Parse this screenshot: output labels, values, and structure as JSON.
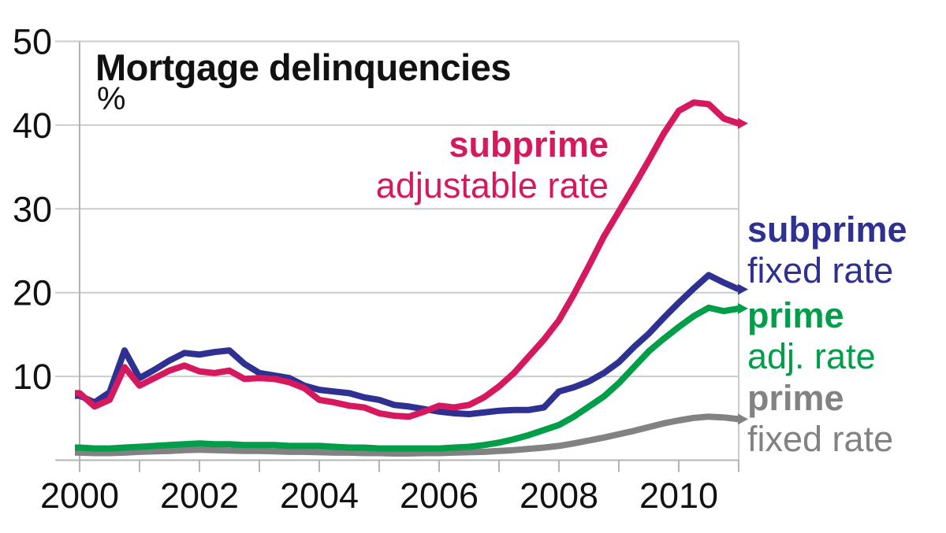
{
  "title": "Mortgage delinquencies",
  "unit_label": "%",
  "chart_data": {
    "type": "line",
    "title": "Mortgage delinquencies",
    "ylabel": "%",
    "xlabel": "",
    "grid": true,
    "xlim": [
      2000,
      2011
    ],
    "ylim": [
      0,
      50
    ],
    "x_start": 2000,
    "x_step_years": 0.25,
    "x_frequency": "quarterly",
    "xtick_years": [
      2000,
      2001,
      2002,
      2003,
      2004,
      2005,
      2006,
      2007,
      2008,
      2009,
      2010,
      2011
    ],
    "xtick_labels": [
      {
        "year": 2000,
        "label": "2000"
      },
      {
        "year": 2002,
        "label": "2002"
      },
      {
        "year": 2004,
        "label": "2004"
      },
      {
        "year": 2006,
        "label": "2006"
      },
      {
        "year": 2008,
        "label": "2008"
      },
      {
        "year": 2010,
        "label": "2010"
      }
    ],
    "ytick_labels": [
      {
        "value": 10,
        "label": "10"
      },
      {
        "value": 20,
        "label": "20"
      },
      {
        "value": 30,
        "label": "30"
      },
      {
        "value": 40,
        "label": "40"
      },
      {
        "value": 50,
        "label": "50"
      }
    ],
    "legend_position": "annotations-on-chart",
    "colors": {
      "grid": "#cccccc",
      "axis": "#b3b3b3",
      "text": "#111111"
    },
    "series": [
      {
        "id": "subprime-arm",
        "name": "subprime adjustable rate",
        "label_line1": "subprime",
        "label_line2": "adjustable rate",
        "color": "#D6195F",
        "values": [
          8.0,
          6.4,
          7.2,
          11.1,
          8.9,
          9.8,
          10.7,
          11.3,
          10.6,
          10.4,
          10.7,
          9.7,
          9.8,
          9.7,
          9.3,
          8.6,
          7.2,
          6.9,
          6.5,
          6.3,
          5.6,
          5.3,
          5.2,
          5.8,
          6.5,
          6.3,
          6.6,
          7.5,
          8.8,
          10.4,
          12.4,
          14.4,
          16.7,
          19.8,
          23.2,
          26.7,
          29.7,
          32.7,
          35.8,
          39.0,
          41.7,
          42.7,
          42.5,
          40.8,
          40.2
        ]
      },
      {
        "id": "subprime-frm",
        "name": "subprime fixed rate",
        "label_line1": "subprime",
        "label_line2": "fixed rate",
        "color": "#2E3192",
        "values": [
          7.7,
          6.9,
          8.1,
          13.1,
          9.8,
          10.8,
          11.9,
          12.8,
          12.6,
          12.9,
          13.1,
          11.5,
          10.4,
          10.1,
          9.8,
          8.9,
          8.4,
          8.2,
          8.0,
          7.5,
          7.2,
          6.6,
          6.4,
          6.1,
          5.8,
          5.6,
          5.5,
          5.7,
          5.9,
          6.0,
          6.0,
          6.3,
          8.2,
          8.7,
          9.4,
          10.4,
          11.7,
          13.5,
          15.1,
          17.0,
          18.8,
          20.5,
          22.1,
          21.2,
          20.4
        ]
      },
      {
        "id": "prime-arm",
        "name": "prime adjustable rate",
        "label_line1": "prime",
        "label_line2": "adj. rate",
        "color": "#009E49",
        "values": [
          1.5,
          1.4,
          1.4,
          1.5,
          1.6,
          1.7,
          1.8,
          1.9,
          2.0,
          1.9,
          1.9,
          1.8,
          1.8,
          1.8,
          1.7,
          1.7,
          1.7,
          1.6,
          1.5,
          1.5,
          1.4,
          1.4,
          1.4,
          1.4,
          1.4,
          1.5,
          1.6,
          1.8,
          2.1,
          2.5,
          3.0,
          3.6,
          4.2,
          5.2,
          6.4,
          7.6,
          9.2,
          11.1,
          13.0,
          14.5,
          15.9,
          17.2,
          18.2,
          17.8,
          18.1
        ]
      },
      {
        "id": "prime-frm",
        "name": "prime fixed rate",
        "label_line1": "prime",
        "label_line2": "fixed rate",
        "color": "#828282",
        "values": [
          0.9,
          0.85,
          0.85,
          0.9,
          1.0,
          1.05,
          1.1,
          1.2,
          1.25,
          1.2,
          1.15,
          1.1,
          1.1,
          1.05,
          1.0,
          1.0,
          0.95,
          0.9,
          0.9,
          0.85,
          0.85,
          0.8,
          0.8,
          0.85,
          0.85,
          0.9,
          0.95,
          1.0,
          1.1,
          1.2,
          1.35,
          1.5,
          1.7,
          2.0,
          2.35,
          2.7,
          3.1,
          3.5,
          3.95,
          4.4,
          4.75,
          5.05,
          5.2,
          5.1,
          4.9
        ]
      }
    ]
  }
}
